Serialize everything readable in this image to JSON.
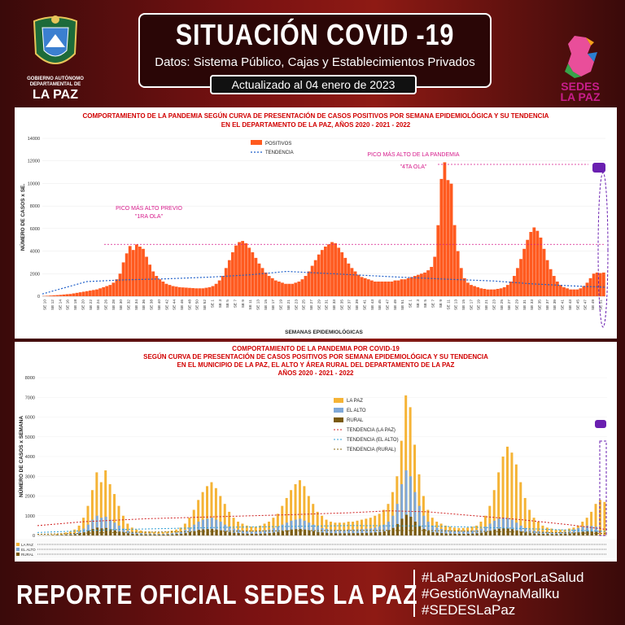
{
  "header": {
    "title": "SITUACIÓN COVID -19",
    "subtitle": "Datos: Sistema Público, Cajas y Establecimientos Privados",
    "updated": "Actualizado  al  04  enero de 2023"
  },
  "logo_left": {
    "caption": "GOBIERNO AUTÓNOMO DEPARTAMENTAL DE",
    "name": "LA PAZ"
  },
  "logo_right": {
    "name1": "SEDES",
    "name2": "LA PAZ"
  },
  "footer": {
    "report": "REPORTE OFICIAL SEDES LA PAZ",
    "hashtags": [
      "#LaPazUnidosPorLaSalud",
      "#GestiónWaynaMallku",
      "#SEDESLaPaz"
    ]
  },
  "colors": {
    "orange": "#ff5a1f",
    "la_paz": "#f5b335",
    "el_alto": "#7fa8d8",
    "rural": "#7a5a10",
    "trend": "#1f5fc9",
    "magenta": "#d6198a"
  },
  "chart_data": [
    {
      "type": "bar",
      "title": "COMPORTAMIENTO DE LA PANDEMIA SEGÚN CURVA DE PRESENTACIÓN DE CASOS POSITIVOS POR SEMANA EPIDEMIOLÓGICA Y SU TENDENCIA",
      "title2": "EN EL DEPARTAMENTO DE LA PAZ, AÑOS 2020 - 2021 - 2022",
      "xlabel": "SEMANAS EPIDEMIOLÓGICAS",
      "ylabel": "NÚMERO DE CASOS x SE.",
      "ylim": [
        0,
        14000
      ],
      "yticks": [
        0,
        2000,
        4000,
        6000,
        8000,
        10000,
        12000,
        14000
      ],
      "legend": [
        "POSITIVOS",
        "TENDENCIA"
      ],
      "annotations": {
        "peak1_line1": "PICO MÁS ALTO PREVIO",
        "peak1_line2": "\"1RA OLA\"",
        "peak4_line1": "PICO MÁS ALTO DE LA PANDEMIA",
        "peak4_line2": "\"4TA OLA\""
      },
      "x_labels": [
        "SE 10",
        "SE 12",
        "SE 14",
        "SE 16",
        "SE 18",
        "SE 20",
        "SE 22",
        "SE 24",
        "SE 26",
        "SE 28",
        "SE 30",
        "SE 32",
        "SE 34",
        "SE 36",
        "SE 38",
        "SE 40",
        "SE 42",
        "SE 44",
        "SE 46",
        "SE 48",
        "SE 50",
        "SE 52",
        "SE 1",
        "SE 3",
        "SE 5",
        "SE 7",
        "SE 9",
        "SE 11",
        "SE 13",
        "SE 15",
        "SE 17",
        "SE 19",
        "SE 21",
        "SE 23",
        "SE 25",
        "SE 27",
        "SE 29",
        "SE 31",
        "SE 33",
        "SE 35",
        "SE 37",
        "SE 39",
        "SE 41",
        "SE 43",
        "SE 45",
        "SE 47",
        "SE 49",
        "SE 51",
        "SE 1",
        "SE 3",
        "SE 5",
        "SE 7",
        "SE 9",
        "SE 11",
        "SE 13",
        "SE 15",
        "SE 17",
        "SE 19",
        "SE 21",
        "SE 23",
        "SE 25",
        "SE 27",
        "SE 29",
        "SE 31",
        "SE 33",
        "SE 35",
        "SE 37",
        "SE 39",
        "SE 41",
        "SE 43",
        "SE 45",
        "SE 47",
        "SE 49",
        "SE 51"
      ],
      "values": [
        20,
        40,
        60,
        80,
        100,
        120,
        150,
        180,
        200,
        250,
        300,
        350,
        400,
        450,
        500,
        550,
        600,
        700,
        800,
        900,
        1000,
        1200,
        1500,
        2000,
        3000,
        3800,
        4449,
        4100,
        4590,
        4400,
        4200,
        3500,
        2800,
        2200,
        1800,
        1500,
        1300,
        1100,
        1000,
        900,
        850,
        800,
        780,
        760,
        740,
        720,
        700,
        700,
        700,
        750,
        800,
        900,
        1100,
        1400,
        1800,
        2500,
        3200,
        3900,
        4500,
        4800,
        4900,
        4700,
        4300,
        3900,
        3400,
        2900,
        2500,
        2100,
        1800,
        1600,
        1400,
        1300,
        1200,
        1100,
        1100,
        1100,
        1200,
        1300,
        1500,
        1800,
        2200,
        2700,
        3200,
        3700,
        4100,
        4400,
        4600,
        4800,
        4700,
        4300,
        3900,
        3400,
        2900,
        2500,
        2200,
        1900,
        1700,
        1600,
        1500,
        1400,
        1300,
        1300,
        1300,
        1300,
        1300,
        1300,
        1400,
        1400,
        1500,
        1500,
        1600,
        1700,
        1800,
        1900,
        2000,
        2100,
        2300,
        2600,
        3500,
        6300,
        10400,
        11877,
        10300,
        9980,
        6306,
        4000,
        2500,
        1600,
        1200,
        1000,
        900,
        800,
        700,
        650,
        600,
        600,
        600,
        650,
        700,
        800,
        1000,
        1300,
        1800,
        2500,
        3300,
        4200,
        5000,
        5700,
        6100,
        5800,
        5200,
        4200,
        3200,
        2400,
        1800,
        1300,
        1000,
        800,
        700,
        600,
        600,
        600,
        700,
        900,
        1200,
        1600,
        2000,
        2100,
        2053,
        2100
      ],
      "trend": [
        [
          0,
          200
        ],
        [
          60,
          1300
        ],
        [
          110,
          1450
        ],
        [
          170,
          1550
        ],
        [
          228,
          1700
        ],
        [
          280,
          1900
        ],
        [
          330,
          2200
        ],
        [
          405,
          1950
        ],
        [
          480,
          1700
        ],
        [
          550,
          1500
        ],
        [
          610,
          1350
        ],
        [
          660,
          1100
        ],
        [
          720,
          900
        ],
        [
          760,
          800
        ]
      ],
      "peak_line_value": 4600
    },
    {
      "type": "bar",
      "title": "COMPORTAMIENTO DE LA PANDEMIA POR COVID-19",
      "title2": "SEGÚN CURVA DE PRESENTACIÓN DE CASOS POSITIVOS POR SEMANA EPIDEMIOLÓGICA Y SU TENDENCIA",
      "title3": "EN EL  MUNICIPIO DE LA PAZ, EL ALTO Y ÁREA RURAL DEL DEPARTAMENTO DE LA PAZ",
      "title4": "AÑOS 2020 - 2021 - 2022",
      "ylabel": "NÚMERO DE CASOS x SEMANA",
      "ylim": [
        0,
        8000
      ],
      "yticks": [
        0,
        1000,
        2000,
        3000,
        4000,
        5000,
        6000,
        7000,
        8000
      ],
      "legend": [
        "LA PAZ",
        "EL ALTO",
        "RURAL",
        "TENDENCIA (LA PAZ)",
        "TENDENCIA (EL ALTO)",
        "TENDENCIA (RURAL)"
      ],
      "table_row_labels": [
        "LA PAZ",
        "EL ALTO",
        "RURAL"
      ],
      "series": [
        {
          "name": "LA PAZ",
          "values": [
            10,
            20,
            30,
            50,
            80,
            100,
            150,
            200,
            300,
            500,
            900,
            1500,
            2300,
            3200,
            2700,
            3300,
            2600,
            2100,
            1500,
            1000,
            600,
            400,
            300,
            250,
            200,
            200,
            180,
            170,
            170,
            200,
            250,
            300,
            400,
            600,
            900,
            1300,
            1800,
            2200,
            2500,
            2700,
            2400,
            2000,
            1600,
            1200,
            900,
            700,
            600,
            500,
            450,
            450,
            500,
            600,
            700,
            900,
            1100,
            1500,
            1900,
            2300,
            2600,
            2800,
            2500,
            2000,
            1600,
            1200,
            1000,
            800,
            700,
            650,
            650,
            650,
            700,
            700,
            750,
            800,
            850,
            900,
            1000,
            1100,
            1300,
            1600,
            2200,
            3000,
            4800,
            7100,
            6500,
            4600,
            3100,
            2000,
            1300,
            900,
            700,
            600,
            500,
            450,
            400,
            380,
            380,
            400,
            450,
            500,
            700,
            1000,
            1500,
            2300,
            3200,
            4000,
            4500,
            4200,
            3600,
            2700,
            1900,
            1300,
            900,
            700,
            500,
            400,
            350,
            300,
            300,
            300,
            350,
            400,
            500,
            700,
            900,
            1200,
            1600,
            1800,
            1700
          ]
        },
        {
          "name": "EL ALTO",
          "values": [
            5,
            10,
            15,
            20,
            30,
            40,
            60,
            80,
            120,
            200,
            350,
            550,
            800,
            1000,
            900,
            950,
            800,
            650,
            500,
            350,
            250,
            180,
            140,
            120,
            100,
            100,
            90,
            85,
            85,
            100,
            120,
            150,
            200,
            280,
            400,
            550,
            700,
            800,
            850,
            900,
            800,
            700,
            550,
            450,
            350,
            300,
            250,
            220,
            200,
            200,
            220,
            260,
            300,
            380,
            450,
            550,
            650,
            750,
            800,
            850,
            750,
            650,
            550,
            450,
            380,
            330,
            300,
            280,
            280,
            280,
            300,
            300,
            310,
            320,
            340,
            360,
            400,
            450,
            550,
            700,
            1000,
            1600,
            2600,
            3300,
            3000,
            2200,
            1500,
            1000,
            700,
            500,
            400,
            330,
            280,
            250,
            230,
            220,
            220,
            230,
            250,
            280,
            350,
            450,
            600,
            750,
            850,
            900,
            880,
            800,
            650,
            500,
            380,
            300,
            250,
            220,
            190,
            170,
            160,
            160,
            170,
            190,
            220,
            300,
            380,
            450,
            500,
            480,
            450
          ]
        },
        {
          "name": "RURAL",
          "values": [
            2,
            4,
            6,
            10,
            15,
            20,
            30,
            40,
            60,
            100,
            160,
            240,
            330,
            400,
            360,
            380,
            320,
            260,
            200,
            150,
            110,
            80,
            65,
            55,
            50,
            50,
            45,
            42,
            42,
            48,
            55,
            70,
            90,
            120,
            170,
            220,
            280,
            310,
            320,
            330,
            300,
            260,
            210,
            170,
            140,
            120,
            100,
            90,
            85,
            85,
            90,
            100,
            120,
            150,
            180,
            220,
            260,
            300,
            320,
            330,
            300,
            260,
            220,
            180,
            150,
            130,
            120,
            110,
            110,
            110,
            115,
            115,
            120,
            125,
            130,
            140,
            155,
            175,
            210,
            270,
            380,
            580,
            850,
            1050,
            950,
            700,
            480,
            330,
            230,
            170,
            140,
            120,
            100,
            90,
            85,
            80,
            80,
            85,
            95,
            110,
            140,
            180,
            240,
            300,
            340,
            360,
            350,
            320,
            260,
            200,
            150,
            120,
            100,
            90,
            80,
            75,
            70,
            70,
            75,
            85,
            100,
            130,
            160,
            190,
            210,
            200,
            190
          ]
        }
      ],
      "trend_la_paz": [
        [
          0,
          500
        ],
        [
          60,
          700
        ],
        [
          140,
          850
        ],
        [
          230,
          950
        ],
        [
          320,
          1050
        ],
        [
          400,
          1150
        ],
        [
          450,
          1250
        ],
        [
          500,
          1200
        ],
        [
          560,
          1000
        ],
        [
          620,
          800
        ],
        [
          680,
          550
        ],
        [
          730,
          300
        ]
      ],
      "trend_el_alto": [
        [
          0,
          150
        ],
        [
          100,
          300
        ],
        [
          250,
          420
        ],
        [
          400,
          500
        ],
        [
          500,
          480
        ],
        [
          600,
          380
        ],
        [
          700,
          250
        ],
        [
          730,
          200
        ]
      ],
      "trend_rural": [
        [
          0,
          60
        ],
        [
          100,
          150
        ],
        [
          250,
          220
        ],
        [
          400,
          260
        ],
        [
          500,
          250
        ],
        [
          600,
          190
        ],
        [
          700,
          120
        ],
        [
          730,
          100
        ]
      ]
    }
  ]
}
